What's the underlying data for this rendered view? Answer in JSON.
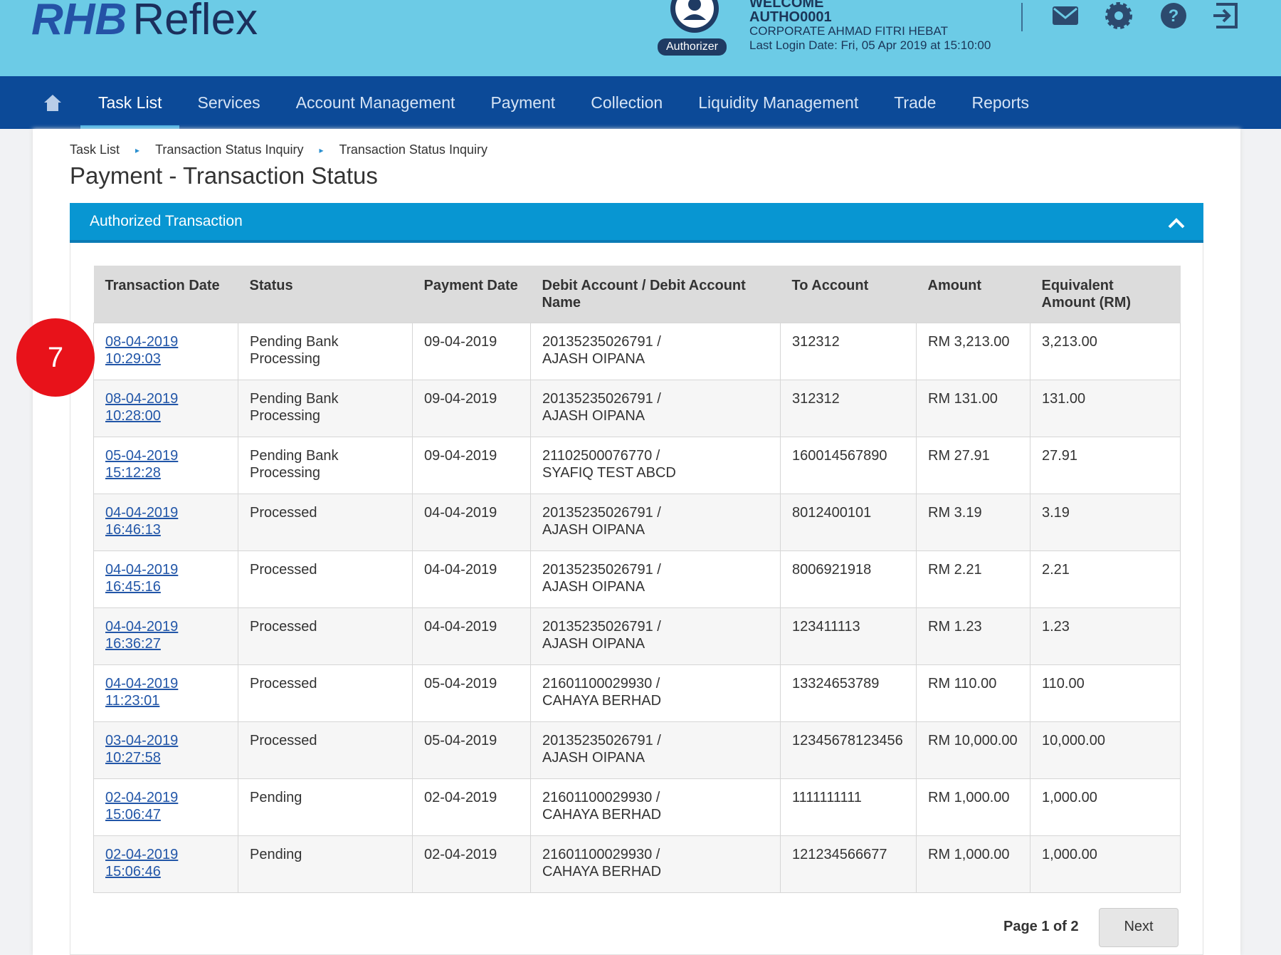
{
  "header": {
    "logo_bold": "RHB",
    "logo_light": "Reflex",
    "role": "Authorizer",
    "welcome": "WELCOME",
    "user": "AUTHO0001",
    "company": "CORPORATE AHMAD FITRI HEBAT",
    "last_login": "Last Login Date: Fri, 05 Apr 2019 at 15:10:00"
  },
  "nav": {
    "items": [
      "Task List",
      "Services",
      "Account Management",
      "Payment",
      "Collection",
      "Liquidity Management",
      "Trade",
      "Reports"
    ],
    "active": 0
  },
  "breadcrumb": [
    "Task List",
    "Transaction Status Inquiry",
    "Transaction Status Inquiry"
  ],
  "page_title": "Payment - Transaction Status",
  "panel_title": "Authorized Transaction",
  "badge": "7",
  "table": {
    "columns": [
      "Transaction Date",
      "Status",
      "Payment Date",
      "Debit Account / Debit Account Name",
      "To Account",
      "Amount",
      "Equivalent Amount (RM)"
    ],
    "rows": [
      [
        [
          "08-04-2019",
          "10:29:03"
        ],
        [
          "Pending Bank",
          "Processing"
        ],
        "09-04-2019",
        [
          "20135235026791 /",
          "AJASH OIPANA"
        ],
        "312312",
        "RM 3,213.00",
        "3,213.00"
      ],
      [
        [
          "08-04-2019",
          "10:28:00"
        ],
        [
          "Pending Bank",
          "Processing"
        ],
        "09-04-2019",
        [
          "20135235026791 /",
          "AJASH OIPANA"
        ],
        "312312",
        "RM 131.00",
        "131.00"
      ],
      [
        [
          "05-04-2019",
          "15:12:28"
        ],
        [
          "Pending Bank",
          "Processing"
        ],
        "09-04-2019",
        [
          "21102500076770 /",
          "SYAFIQ TEST ABCD"
        ],
        "160014567890",
        "RM 27.91",
        "27.91"
      ],
      [
        [
          "04-04-2019",
          "16:46:13"
        ],
        "Processed",
        "04-04-2019",
        [
          "20135235026791 /",
          "AJASH OIPANA"
        ],
        "8012400101",
        "RM 3.19",
        "3.19"
      ],
      [
        [
          "04-04-2019",
          "16:45:16"
        ],
        "Processed",
        "04-04-2019",
        [
          "20135235026791 /",
          "AJASH OIPANA"
        ],
        "8006921918",
        "RM 2.21",
        "2.21"
      ],
      [
        [
          "04-04-2019",
          "16:36:27"
        ],
        "Processed",
        "04-04-2019",
        [
          "20135235026791 /",
          "AJASH OIPANA"
        ],
        "123411113",
        "RM 1.23",
        "1.23"
      ],
      [
        [
          "04-04-2019",
          "11:23:01"
        ],
        "Processed",
        "05-04-2019",
        [
          "21601100029930 /",
          "CAHAYA BERHAD"
        ],
        "13324653789",
        "RM 110.00",
        "110.00"
      ],
      [
        [
          "03-04-2019",
          "10:27:58"
        ],
        "Processed",
        "05-04-2019",
        [
          "20135235026791 /",
          "AJASH OIPANA"
        ],
        "12345678123456",
        "RM 10,000.00",
        "10,000.00"
      ],
      [
        [
          "02-04-2019",
          "15:06:47"
        ],
        "Pending",
        "02-04-2019",
        [
          "21601100029930 /",
          "CAHAYA BERHAD"
        ],
        "1111111111",
        "RM 1,000.00",
        "1,000.00"
      ],
      [
        [
          "02-04-2019",
          "15:06:46"
        ],
        "Pending",
        "02-04-2019",
        [
          "21601100029930 /",
          "CAHAYA BERHAD"
        ],
        "121234566677",
        "RM 1,000.00",
        "1,000.00"
      ]
    ]
  },
  "pagination": {
    "label": "Page 1 of 2",
    "next": "Next"
  }
}
